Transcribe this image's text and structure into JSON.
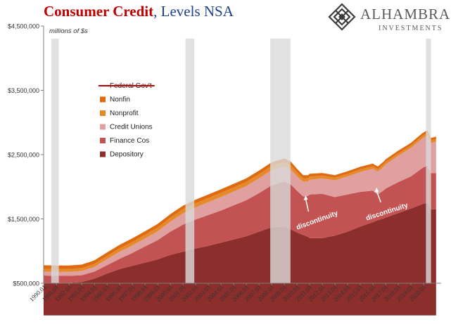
{
  "header": {
    "title_main": "Consumer Credit",
    "title_sep": ", ",
    "title_rest": "Levels NSA"
  },
  "logo": {
    "name": "ALHAMBRA",
    "sub": "INVESTMENTS"
  },
  "colors": {
    "federal_govt": "#c00000",
    "nonfin": "#e06a10",
    "nonprofit": "#e58a2a",
    "credit_unions": "#e0a0a0",
    "finance_cos": "#c35352",
    "depository": "#8b2e2c",
    "recession": "#d9d9d9",
    "axis": "#7f7f7f"
  },
  "chart_data": {
    "type": "area",
    "stacked": true,
    "ylabel": "millions of $s",
    "ylim": [
      500000,
      4500000
    ],
    "yticks": [
      500000,
      1500000,
      2500000,
      3500000,
      4500000
    ],
    "ytick_labels": [
      "$500,000",
      "$1,500,000",
      "$2,500,000",
      "$3,500,000",
      "$4,500,000"
    ],
    "xlim": [
      1990.0,
      2021.4
    ],
    "xtick_labels": [
      "1990.01",
      "1991.01",
      "1992.01",
      "1993.01",
      "1994.01",
      "1995.01",
      "1996.01",
      "1997.01",
      "1998.01",
      "1999.01",
      "2000.01",
      "2001.01",
      "2002.01",
      "2003.01",
      "2004.01",
      "2005.01",
      "2006.01",
      "2007.01",
      "2008.01",
      "2009.01",
      "2010.01",
      "2011.01",
      "2012.01",
      "2013.01",
      "2014.01",
      "2015.01",
      "2016.01",
      "2017.01",
      "2018.01",
      "2019.01",
      "2020.01"
    ],
    "recessions": [
      [
        1990.6,
        1991.2
      ],
      [
        2001.2,
        2001.9
      ],
      [
        2007.9,
        2009.5
      ],
      [
        2020.2,
        2020.6
      ]
    ],
    "x": [
      1990.0,
      1991.0,
      1992.0,
      1993.0,
      1994.0,
      1995.0,
      1996.0,
      1997.0,
      1998.0,
      1999.0,
      2000.0,
      2001.0,
      2002.0,
      2003.0,
      2004.0,
      2005.0,
      2006.0,
      2007.0,
      2008.0,
      2009.0,
      2009.5,
      2010.0,
      2010.5,
      2010.9,
      2011.0,
      2012.0,
      2013.0,
      2014.0,
      2015.0,
      2016.0,
      2016.4,
      2016.9,
      2017.0,
      2018.0,
      2019.0,
      2019.9,
      2020.3,
      2020.6,
      2021.0
    ],
    "series": [
      {
        "name": "Depository",
        "values": [
          500000,
          500000,
          505000,
          520000,
          570000,
          650000,
          720000,
          770000,
          820000,
          870000,
          940000,
          990000,
          1040000,
          1080000,
          1130000,
          1180000,
          1230000,
          1300000,
          1370000,
          1380000,
          1340000,
          1290000,
          1250000,
          1220000,
          1200000,
          1200000,
          1240000,
          1300000,
          1380000,
          1450000,
          1480000,
          1510000,
          1520000,
          1590000,
          1660000,
          1730000,
          1750000,
          1650000,
          1650000
        ]
      },
      {
        "name": "Finance Cos",
        "values": [
          120000,
          115000,
          110000,
          105000,
          110000,
          130000,
          160000,
          200000,
          250000,
          300000,
          360000,
          420000,
          450000,
          480000,
          500000,
          530000,
          560000,
          600000,
          650000,
          700000,
          700000,
          650000,
          600000,
          640000,
          680000,
          690000,
          600000,
          580000,
          540000,
          490000,
          400000,
          440000,
          450000,
          480000,
          500000,
          560000,
          580000,
          560000,
          560000
        ]
      },
      {
        "name": "Credit Unions",
        "values": [
          60000,
          60000,
          62000,
          65000,
          75000,
          95000,
          110000,
          118000,
          125000,
          135000,
          155000,
          175000,
          190000,
          200000,
          210000,
          215000,
          220000,
          230000,
          240000,
          240000,
          235000,
          228000,
          226000,
          226000,
          228000,
          240000,
          260000,
          280000,
          310000,
          340000,
          355000,
          370000,
          375000,
          410000,
          440000,
          460000,
          470000,
          470000,
          490000
        ]
      },
      {
        "name": "Nonprofit",
        "values": [
          45000,
          45000,
          45000,
          45000,
          45000,
          48000,
          52000,
          55000,
          58000,
          60000,
          62000,
          65000,
          65000,
          65000,
          65000,
          65000,
          65000,
          65000,
          65000,
          65000,
          65000,
          60000,
          55000,
          50000,
          50000,
          45000,
          40000,
          40000,
          40000,
          40000,
          40000,
          40000,
          40000,
          40000,
          40000,
          40000,
          40000,
          40000,
          40000
        ]
      },
      {
        "name": "Nonfin",
        "values": [
          55000,
          55000,
          55000,
          55000,
          55000,
          55000,
          55000,
          55000,
          55000,
          55000,
          55000,
          55000,
          55000,
          55000,
          55000,
          55000,
          55000,
          55000,
          55000,
          55000,
          55000,
          55000,
          50000,
          45000,
          45000,
          40000,
          40000,
          40000,
          40000,
          40000,
          40000,
          40000,
          40000,
          40000,
          40000,
          40000,
          40000,
          40000,
          40000
        ]
      }
    ],
    "legend": [
      "Federal Gov't",
      "Nonfin",
      "Nonprofit",
      "Credit Unions",
      "Finance Cos",
      "Depository"
    ],
    "legend_placement": "upper-left",
    "annotations": [
      {
        "text": "discontinuity",
        "x": 2010.7
      },
      {
        "text": "discontinuity",
        "x": 2016.3
      }
    ],
    "grid": false
  }
}
